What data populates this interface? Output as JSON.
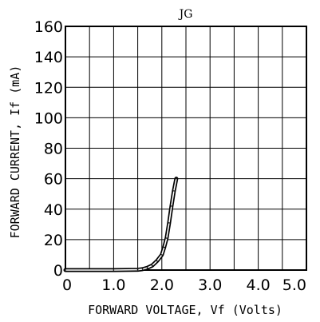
{
  "chart_data": {
    "type": "line",
    "title": "JG",
    "xlabel": "FORWARD VOLTAGE, Vf (Volts)",
    "ylabel": "FORWARD CURRENT, If (mA)",
    "xlim": [
      0,
      5.0
    ],
    "ylim": [
      0,
      160
    ],
    "x_ticks": [
      0,
      1.0,
      2.0,
      3.0,
      4.0,
      5.0
    ],
    "x_tick_labels": [
      "0",
      "1.0",
      "2.0",
      "3.0",
      "4.0",
      "5.0"
    ],
    "y_ticks": [
      0,
      20,
      40,
      60,
      80,
      100,
      120,
      140,
      160
    ],
    "y_tick_labels": [
      "0",
      "20",
      "40",
      "60",
      "80",
      "100",
      "120",
      "140",
      "160"
    ],
    "grid": true,
    "grid_x_step": 0.5,
    "grid_y_step": 20,
    "series": [
      {
        "x": [
          0,
          1.0,
          1.5,
          1.6,
          1.7,
          1.8,
          1.9,
          2.0,
          2.05,
          2.1,
          2.15,
          2.2,
          2.25,
          2.3
        ],
        "y": [
          0,
          0,
          0.2,
          0.6,
          1.5,
          3,
          6,
          10,
          15,
          21,
          31,
          42,
          52,
          60
        ]
      }
    ]
  }
}
